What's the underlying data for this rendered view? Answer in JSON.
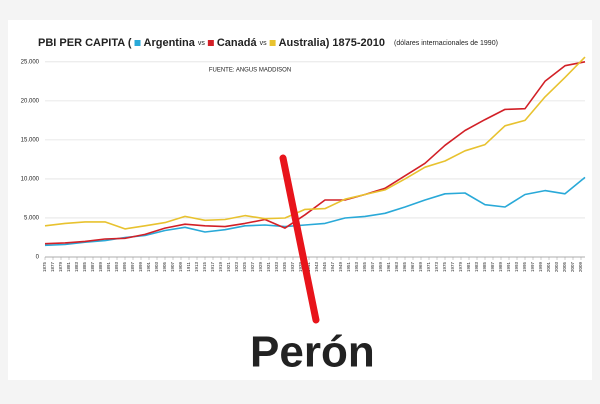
{
  "chart_data": {
    "type": "line",
    "title": "PBI PER CAPITA (",
    "title_separators": [
      "vs",
      "vs"
    ],
    "title_suffix": ") 1875-2010",
    "subtitle": "(dólares internacionales de 1990)",
    "source": "FUENTE: ANGUS MADDISON",
    "annotation": "Perón",
    "x": [
      1875,
      1880,
      1885,
      1890,
      1895,
      1900,
      1905,
      1910,
      1915,
      1920,
      1925,
      1930,
      1935,
      1940,
      1945,
      1950,
      1955,
      1960,
      1965,
      1970,
      1975,
      1980,
      1985,
      1990,
      1995,
      2000,
      2005,
      2010
    ],
    "series": [
      {
        "name": "Argentina",
        "color": "#29a9d8",
        "values": [
          1500,
          1600,
          1900,
          2100,
          2500,
          2750,
          3400,
          3800,
          3200,
          3500,
          4000,
          4100,
          3900,
          4100,
          4300,
          4990,
          5200,
          5600,
          6400,
          7300,
          8100,
          8200,
          6700,
          6400,
          8000,
          8500,
          8100,
          10200
        ]
      },
      {
        "name": "Canadá",
        "color": "#d22027",
        "values": [
          1700,
          1800,
          2000,
          2300,
          2400,
          2900,
          3700,
          4200,
          4000,
          3900,
          4300,
          4800,
          3700,
          5400,
          7300,
          7300,
          8000,
          8800,
          10400,
          12000,
          14300,
          16200,
          17600,
          18900,
          19000,
          22500,
          24500,
          25000
        ]
      },
      {
        "name": "Australia",
        "color": "#e8c22f",
        "values": [
          4000,
          4300,
          4500,
          4500,
          3600,
          4000,
          4400,
          5200,
          4700,
          4800,
          5300,
          4900,
          5000,
          6100,
          6200,
          7400,
          8000,
          8600,
          10000,
          11500,
          12300,
          13600,
          14400,
          16800,
          17500,
          20500,
          23000,
          25600
        ]
      }
    ],
    "xlim": [
      1875,
      2010
    ],
    "xticks": [
      1875,
      1877,
      1879,
      1881,
      1883,
      1885,
      1887,
      1889,
      1891,
      1893,
      1895,
      1897,
      1899,
      1901,
      1903,
      1905,
      1907,
      1909,
      1911,
      1913,
      1915,
      1917,
      1919,
      1921,
      1923,
      1925,
      1927,
      1929,
      1931,
      1933,
      1935,
      1937,
      1939,
      1941,
      1943,
      1945,
      1947,
      1949,
      1951,
      1953,
      1955,
      1957,
      1959,
      1961,
      1963,
      1965,
      1967,
      1969,
      1971,
      1973,
      1975,
      1977,
      1979,
      1981,
      1983,
      1985,
      1987,
      1989,
      1991,
      1993,
      1995,
      1997,
      1999,
      2001,
      2003,
      2005,
      2007,
      2009
    ],
    "ylim": [
      0,
      26000
    ],
    "yticks": [
      0,
      {
        "value": 5000,
        "label": "5.000"
      },
      {
        "value": 10000,
        "label": "10.000"
      },
      {
        "value": 15000,
        "label": "15.000"
      },
      {
        "value": 20000,
        "label": "20.000"
      },
      {
        "value": 25000,
        "label": "25.000"
      }
    ],
    "grid": true
  }
}
